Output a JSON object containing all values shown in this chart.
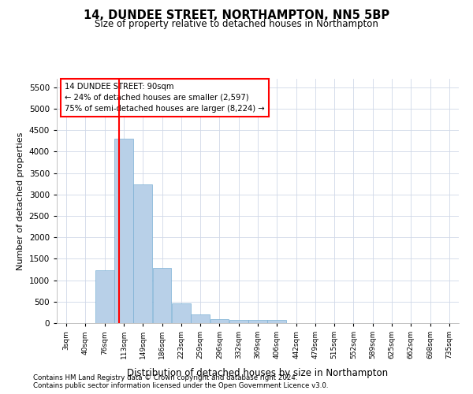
{
  "title": "14, DUNDEE STREET, NORTHAMPTON, NN5 5BP",
  "subtitle": "Size of property relative to detached houses in Northampton",
  "xlabel": "Distribution of detached houses by size in Northampton",
  "ylabel": "Number of detached properties",
  "footnote1": "Contains HM Land Registry data © Crown copyright and database right 2024.",
  "footnote2": "Contains public sector information licensed under the Open Government Licence v3.0.",
  "annotation_line1": "14 DUNDEE STREET: 90sqm",
  "annotation_line2": "← 24% of detached houses are smaller (2,597)",
  "annotation_line3": "75% of semi-detached houses are larger (8,224) →",
  "bar_color": "#b8d0e8",
  "bar_edge_color": "#7aafd4",
  "red_line_color": "#ff0000",
  "background_color": "#ffffff",
  "grid_color": "#d0d8e8",
  "categories": [
    "3sqm",
    "40sqm",
    "76sqm",
    "113sqm",
    "149sqm",
    "186sqm",
    "223sqm",
    "259sqm",
    "296sqm",
    "332sqm",
    "369sqm",
    "406sqm",
    "442sqm",
    "479sqm",
    "515sqm",
    "552sqm",
    "589sqm",
    "625sqm",
    "662sqm",
    "698sqm",
    "735sqm"
  ],
  "values": [
    0,
    0,
    1230,
    4300,
    3230,
    1280,
    460,
    195,
    100,
    70,
    65,
    65,
    0,
    0,
    0,
    0,
    0,
    0,
    0,
    0,
    0
  ],
  "red_line_x": 2.75,
  "ylim": [
    0,
    5700
  ],
  "yticks": [
    0,
    500,
    1000,
    1500,
    2000,
    2500,
    3000,
    3500,
    4000,
    4500,
    5000,
    5500
  ]
}
